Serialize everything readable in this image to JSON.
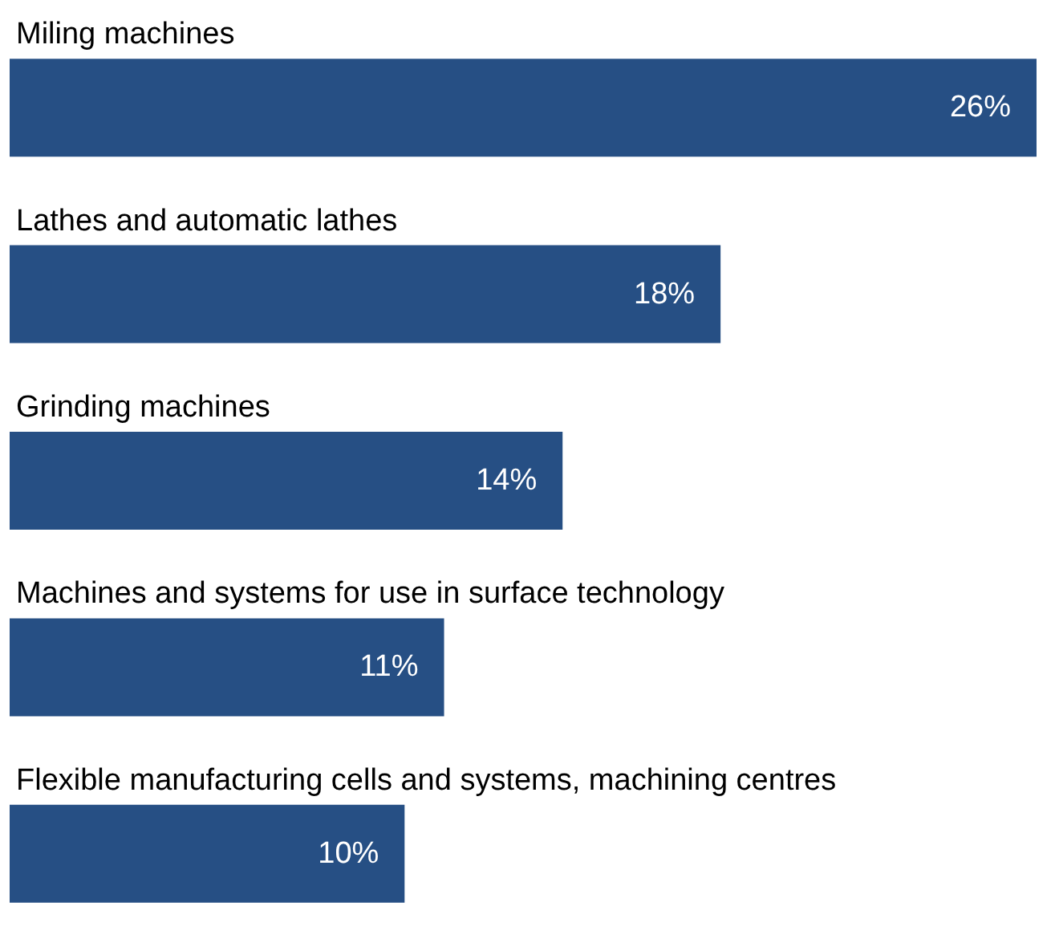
{
  "chart_data": {
    "type": "bar",
    "orientation": "horizontal",
    "categories": [
      "Miling machines",
      "Lathes and automatic lathes",
      "Grinding machines",
      "Machines and systems for use in surface technology",
      "Flexible manufacturing cells and systems, machining centres"
    ],
    "values": [
      26,
      18,
      14,
      11,
      10
    ],
    "value_labels": [
      "26%",
      "18%",
      "14%",
      "11%",
      "10%"
    ],
    "color": "#264f84"
  }
}
